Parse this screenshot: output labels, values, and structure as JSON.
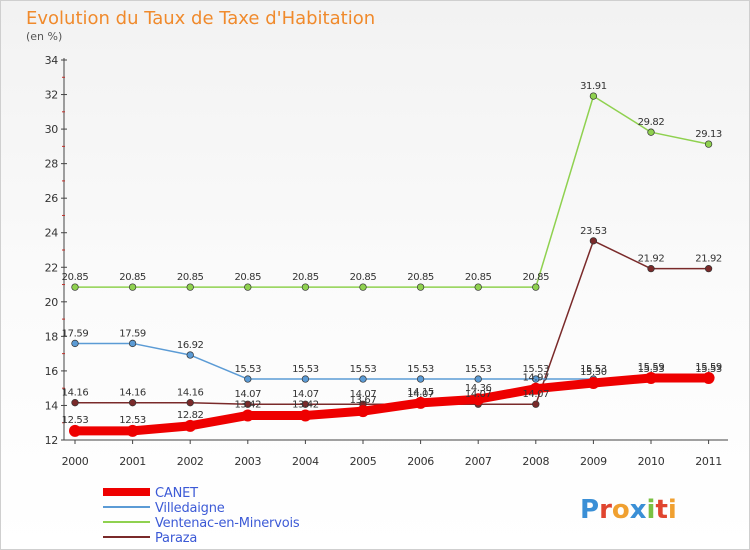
{
  "chart_data": {
    "type": "line",
    "title": "Evolution du Taux de Taxe d'Habitation",
    "subtitle": "(en %)",
    "categories": [
      "2000",
      "2001",
      "2002",
      "2003",
      "2004",
      "2005",
      "2006",
      "2007",
      "2008",
      "2009",
      "2010",
      "2011"
    ],
    "ylim": [
      12,
      34
    ],
    "yticks": [
      12,
      14,
      16,
      18,
      20,
      22,
      24,
      26,
      28,
      30,
      32,
      34
    ],
    "grid": false,
    "legend_position": "bottom-left",
    "series": [
      {
        "name": "CANET",
        "color": "#ee0000",
        "values": [
          12.53,
          12.53,
          12.82,
          13.42,
          13.42,
          13.67,
          14.15,
          14.36,
          14.97,
          15.3,
          15.59,
          15.59
        ],
        "labels": [
          "12.53",
          "12.53",
          "12.82",
          "13.42",
          "13.42",
          "13.67",
          "14.15",
          "14.36",
          "14.97",
          "15.30",
          "15.59",
          "15.59"
        ]
      },
      {
        "name": "Villedaigne",
        "color": "#5b9bd5",
        "values": [
          17.59,
          17.59,
          16.92,
          15.53,
          15.53,
          15.53,
          15.53,
          15.53,
          15.53,
          15.53,
          15.53,
          15.53
        ],
        "labels": [
          "17.59",
          "17.59",
          "16.92",
          "15.53",
          "15.53",
          "15.53",
          "15.53",
          "15.53",
          "15.53",
          "15.53",
          "15.53",
          "15.53"
        ]
      },
      {
        "name": "Ventenac-en-Minervois",
        "color": "#8fd14f",
        "values": [
          20.85,
          20.85,
          20.85,
          20.85,
          20.85,
          20.85,
          20.85,
          20.85,
          20.85,
          31.91,
          29.82,
          29.13
        ],
        "labels": [
          "20.85",
          "20.85",
          "20.85",
          "20.85",
          "20.85",
          "20.85",
          "20.85",
          "20.85",
          "20.85",
          "31.91",
          "29.82",
          "29.13"
        ]
      },
      {
        "name": "Paraza",
        "color": "#7a2a2a",
        "values": [
          14.16,
          14.16,
          14.16,
          14.07,
          14.07,
          14.07,
          14.07,
          14.07,
          14.07,
          23.53,
          21.92,
          21.92
        ],
        "labels": [
          "14.16",
          "14.16",
          "14.16",
          "14.07",
          "14.07",
          "14.07",
          "14.07",
          "14.07",
          "14.07",
          "23.53",
          "21.92",
          "21.92"
        ]
      }
    ]
  },
  "logo_text": "Proxiti"
}
